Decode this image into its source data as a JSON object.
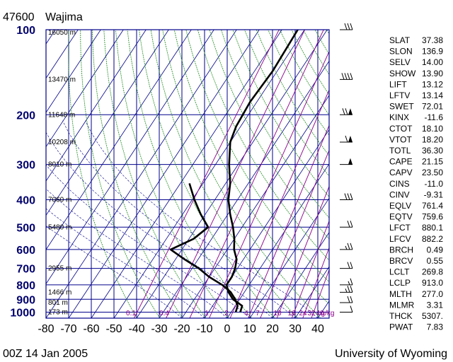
{
  "station": {
    "id": "47600",
    "name": "Wajima"
  },
  "time": "00Z 14 Jan 2005",
  "source": "University of Wyoming",
  "colors": {
    "grid": "#00008b",
    "dry_adiabat": "#1e8e1e",
    "mixing_ratio": "#8b008b",
    "profile": "#000000"
  },
  "chart_data": {
    "type": "line",
    "title": "",
    "xlabel": "",
    "ylabel": "",
    "y_scale": "log",
    "xlim": [
      -80,
      45
    ],
    "ylim": [
      1050,
      100
    ],
    "x_ticks": [
      "-80",
      "-70",
      "-60",
      "-50",
      "-40",
      "-30",
      "-20",
      "-10",
      "0",
      "10",
      "20",
      "30",
      "40"
    ],
    "pressure_levels": [
      100,
      200,
      300,
      400,
      500,
      600,
      700,
      800,
      900,
      1000
    ],
    "pressure_labels": [
      "100",
      "200",
      "300",
      "400",
      "500",
      "600",
      "700",
      "800",
      "900",
      "1000"
    ],
    "height_labels": [
      {
        "p": 100,
        "text": "16050 m"
      },
      {
        "p": 150,
        "text": "13470 m"
      },
      {
        "p": 200,
        "text": "11648 m"
      },
      {
        "p": 250,
        "text": "10208 m"
      },
      {
        "p": 300,
        "text": "8010 m"
      },
      {
        "p": 400,
        "text": "7060 m"
      },
      {
        "p": 500,
        "text": "5480 m"
      },
      {
        "p": 700,
        "text": "2955 m"
      },
      {
        "p": 850,
        "text": "1466 m"
      },
      {
        "p": 925,
        "text": "801 m"
      },
      {
        "p": 1000,
        "text": "173 m"
      }
    ],
    "mixing_ratio_labels": [
      "0.1",
      "0.4",
      "1",
      "2",
      "4",
      "7",
      "10",
      "16",
      "24",
      "32",
      "40",
      "g/kg"
    ],
    "series": [
      {
        "name": "",
        "points": [
          [
            -53,
            100
          ],
          [
            -52,
            140
          ],
          [
            -53,
            180
          ],
          [
            -52,
            220
          ],
          [
            -50,
            250
          ],
          [
            -44,
            300
          ],
          [
            -38,
            350
          ],
          [
            -34,
            400
          ],
          [
            -29,
            450
          ],
          [
            -24,
            500
          ],
          [
            -20,
            550
          ],
          [
            -17,
            600
          ],
          [
            -13,
            650
          ],
          [
            -11,
            700
          ],
          [
            -10,
            750
          ],
          [
            -10,
            800
          ],
          [
            -7,
            850
          ],
          [
            -3,
            900
          ],
          [
            3,
            950
          ],
          [
            4,
            1000
          ]
        ]
      },
      {
        "name": "",
        "points": [
          [
            -56,
            350
          ],
          [
            -49,
            400
          ],
          [
            -42,
            450
          ],
          [
            -35,
            500
          ],
          [
            -38,
            550
          ],
          [
            -45,
            600
          ],
          [
            -36,
            650
          ],
          [
            -27,
            700
          ],
          [
            -20,
            750
          ],
          [
            -12,
            800
          ],
          [
            -6,
            850
          ],
          [
            -2,
            900
          ],
          [
            1,
            950
          ],
          [
            2,
            1000
          ]
        ]
      }
    ]
  },
  "wind_barbs": [
    {
      "p": 100,
      "speed": 30
    },
    {
      "p": 150,
      "speed": 40
    },
    {
      "p": 200,
      "speed": 70
    },
    {
      "p": 250,
      "speed": 60
    },
    {
      "p": 300,
      "speed": 50
    },
    {
      "p": 400,
      "speed": 30
    },
    {
      "p": 500,
      "speed": 20
    },
    {
      "p": 600,
      "speed": 25
    },
    {
      "p": 700,
      "speed": 20
    },
    {
      "p": 800,
      "speed": 15
    },
    {
      "p": 850,
      "speed": 25
    },
    {
      "p": 925,
      "speed": 20
    },
    {
      "p": 1000,
      "speed": 10
    }
  ],
  "indices": [
    {
      "name": "SLAT",
      "value": "37.38"
    },
    {
      "name": "SLON",
      "value": "136.9"
    },
    {
      "name": "SELV",
      "value": "14.00"
    },
    {
      "name": "SHOW",
      "value": "13.90"
    },
    {
      "name": "LIFT",
      "value": "13.12"
    },
    {
      "name": "LFTV",
      "value": "13.14"
    },
    {
      "name": "SWET",
      "value": "72.01"
    },
    {
      "name": "KINX",
      "value": "-11.6"
    },
    {
      "name": "CTOT",
      "value": "18.10"
    },
    {
      "name": "VTOT",
      "value": "18.20"
    },
    {
      "name": "TOTL",
      "value": "36.30"
    },
    {
      "name": "CAPE",
      "value": "21.15"
    },
    {
      "name": "CAPV",
      "value": "23.50"
    },
    {
      "name": "CINS",
      "value": "-11.0"
    },
    {
      "name": "CINV",
      "value": "-9.31"
    },
    {
      "name": "EQLV",
      "value": "761.4"
    },
    {
      "name": "EQTV",
      "value": "759.6"
    },
    {
      "name": "LFCT",
      "value": "880.1"
    },
    {
      "name": "LFCV",
      "value": "882.2"
    },
    {
      "name": "BRCH",
      "value": "0.49"
    },
    {
      "name": "BRCV",
      "value": "0.55"
    },
    {
      "name": "LCLT",
      "value": "269.8"
    },
    {
      "name": "LCLP",
      "value": "913.0"
    },
    {
      "name": "MLTH",
      "value": "277.0"
    },
    {
      "name": "MLMR",
      "value": "3.31"
    },
    {
      "name": "THCK",
      "value": "5307."
    },
    {
      "name": "PWAT",
      "value": "7.83"
    }
  ]
}
